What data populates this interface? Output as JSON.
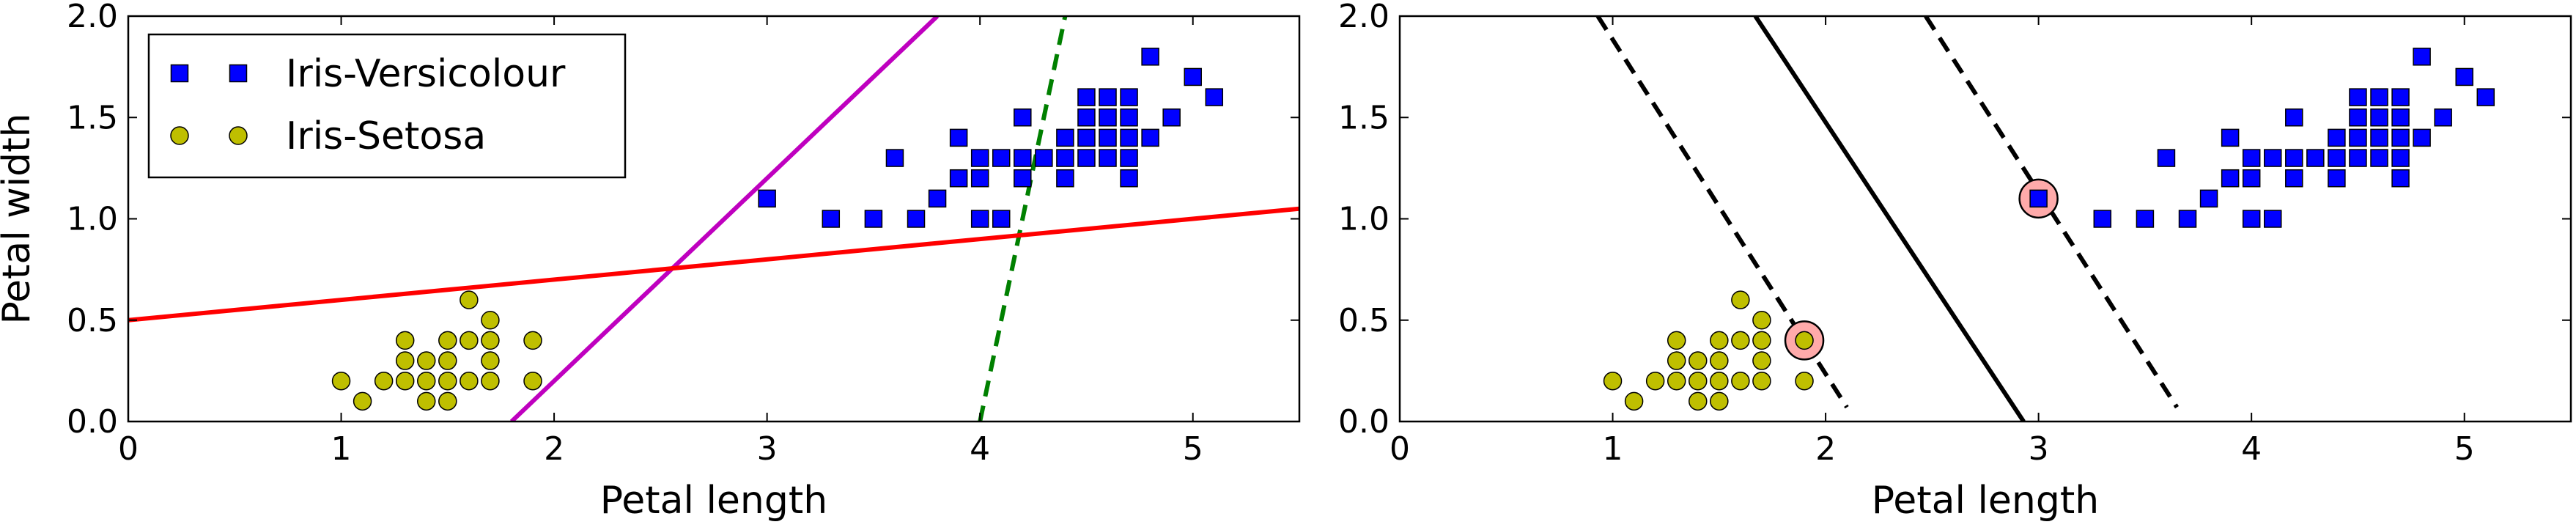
{
  "chart_data": [
    {
      "type": "scatter",
      "title": "",
      "xlabel": "Petal length",
      "ylabel": "Petal width",
      "xlim": [
        0,
        5.5
      ],
      "ylim": [
        0,
        2.0
      ],
      "xticks": [
        0,
        1,
        2,
        3,
        4,
        5
      ],
      "xtick_labels": [
        "0",
        "1",
        "2",
        "3",
        "4",
        "5"
      ],
      "yticks": [
        0.0,
        0.5,
        1.0,
        1.5,
        2.0
      ],
      "ytick_labels": [
        "0.0",
        "0.5",
        "1.0",
        "1.5",
        "2.0"
      ],
      "legend": {
        "position": "top-left",
        "entries": [
          "Iris-Versicolour",
          "Iris-Setosa"
        ]
      },
      "series": [
        {
          "name": "Iris-Versicolour",
          "marker": "square",
          "color": "#0000ff",
          "points": [
            [
              3.0,
              1.1
            ],
            [
              3.3,
              1.0
            ],
            [
              3.5,
              1.0
            ],
            [
              3.6,
              1.3
            ],
            [
              3.7,
              1.0
            ],
            [
              3.8,
              1.1
            ],
            [
              3.9,
              1.2
            ],
            [
              3.9,
              1.4
            ],
            [
              4.0,
              1.0
            ],
            [
              4.0,
              1.2
            ],
            [
              4.0,
              1.3
            ],
            [
              4.1,
              1.0
            ],
            [
              4.1,
              1.3
            ],
            [
              4.2,
              1.2
            ],
            [
              4.2,
              1.3
            ],
            [
              4.2,
              1.5
            ],
            [
              4.3,
              1.3
            ],
            [
              4.4,
              1.2
            ],
            [
              4.4,
              1.3
            ],
            [
              4.4,
              1.4
            ],
            [
              4.5,
              1.3
            ],
            [
              4.5,
              1.5
            ],
            [
              4.6,
              1.3
            ],
            [
              4.6,
              1.4
            ],
            [
              4.6,
              1.5
            ],
            [
              4.7,
              1.2
            ],
            [
              4.7,
              1.4
            ],
            [
              4.7,
              1.5
            ],
            [
              4.7,
              1.6
            ],
            [
              4.8,
              1.8
            ],
            [
              4.9,
              1.5
            ],
            [
              5.0,
              1.7
            ],
            [
              5.1,
              1.6
            ],
            [
              4.5,
              1.6
            ],
            [
              4.6,
              1.6
            ],
            [
              4.5,
              1.4
            ],
            [
              4.7,
              1.3
            ],
            [
              4.8,
              1.4
            ]
          ]
        },
        {
          "name": "Iris-Setosa",
          "marker": "circle",
          "color": "#bfbf00",
          "points": [
            [
              1.0,
              0.2
            ],
            [
              1.1,
              0.1
            ],
            [
              1.2,
              0.2
            ],
            [
              1.3,
              0.2
            ],
            [
              1.3,
              0.3
            ],
            [
              1.3,
              0.4
            ],
            [
              1.4,
              0.1
            ],
            [
              1.4,
              0.2
            ],
            [
              1.4,
              0.3
            ],
            [
              1.5,
              0.1
            ],
            [
              1.5,
              0.2
            ],
            [
              1.5,
              0.3
            ],
            [
              1.5,
              0.4
            ],
            [
              1.6,
              0.2
            ],
            [
              1.6,
              0.4
            ],
            [
              1.6,
              0.6
            ],
            [
              1.7,
              0.2
            ],
            [
              1.7,
              0.3
            ],
            [
              1.7,
              0.4
            ],
            [
              1.7,
              0.5
            ],
            [
              1.9,
              0.2
            ],
            [
              1.9,
              0.4
            ]
          ]
        }
      ],
      "lines": [
        {
          "style": "dashed",
          "color": "#008000",
          "points": [
            [
              4.0,
              0.0
            ],
            [
              4.4,
              2.0
            ]
          ]
        },
        {
          "style": "solid",
          "color": "#bf00bf",
          "points": [
            [
              1.8,
              0.0
            ],
            [
              3.8,
              2.0
            ]
          ]
        },
        {
          "style": "solid",
          "color": "#ff0000",
          "points": [
            [
              0.0,
              0.5
            ],
            [
              5.5,
              1.05
            ]
          ]
        }
      ]
    },
    {
      "type": "scatter",
      "title": "",
      "xlabel": "Petal length",
      "ylabel": "",
      "xlim": [
        0,
        5.5
      ],
      "ylim": [
        0,
        2.0
      ],
      "xticks": [
        0,
        1,
        2,
        3,
        4,
        5
      ],
      "xtick_labels": [
        "0",
        "1",
        "2",
        "3",
        "4",
        "5"
      ],
      "yticks": [
        0.0,
        0.5,
        1.0,
        1.5,
        2.0
      ],
      "ytick_labels": [
        "0.0",
        "0.5",
        "1.0",
        "1.5",
        "2.0"
      ],
      "series": [
        {
          "name": "Iris-Versicolour",
          "marker": "square",
          "color": "#0000ff",
          "points": [
            [
              3.0,
              1.1
            ],
            [
              3.3,
              1.0
            ],
            [
              3.5,
              1.0
            ],
            [
              3.6,
              1.3
            ],
            [
              3.7,
              1.0
            ],
            [
              3.8,
              1.1
            ],
            [
              3.9,
              1.2
            ],
            [
              3.9,
              1.4
            ],
            [
              4.0,
              1.0
            ],
            [
              4.0,
              1.2
            ],
            [
              4.0,
              1.3
            ],
            [
              4.1,
              1.0
            ],
            [
              4.1,
              1.3
            ],
            [
              4.2,
              1.2
            ],
            [
              4.2,
              1.3
            ],
            [
              4.2,
              1.5
            ],
            [
              4.3,
              1.3
            ],
            [
              4.4,
              1.2
            ],
            [
              4.4,
              1.3
            ],
            [
              4.4,
              1.4
            ],
            [
              4.5,
              1.3
            ],
            [
              4.5,
              1.5
            ],
            [
              4.6,
              1.3
            ],
            [
              4.6,
              1.4
            ],
            [
              4.6,
              1.5
            ],
            [
              4.7,
              1.2
            ],
            [
              4.7,
              1.4
            ],
            [
              4.7,
              1.5
            ],
            [
              4.7,
              1.6
            ],
            [
              4.8,
              1.8
            ],
            [
              4.9,
              1.5
            ],
            [
              5.0,
              1.7
            ],
            [
              5.1,
              1.6
            ],
            [
              4.5,
              1.6
            ],
            [
              4.6,
              1.6
            ],
            [
              4.5,
              1.4
            ],
            [
              4.7,
              1.3
            ],
            [
              4.8,
              1.4
            ]
          ]
        },
        {
          "name": "Iris-Setosa",
          "marker": "circle",
          "color": "#bfbf00",
          "points": [
            [
              1.0,
              0.2
            ],
            [
              1.1,
              0.1
            ],
            [
              1.2,
              0.2
            ],
            [
              1.3,
              0.2
            ],
            [
              1.3,
              0.3
            ],
            [
              1.3,
              0.4
            ],
            [
              1.4,
              0.1
            ],
            [
              1.4,
              0.2
            ],
            [
              1.4,
              0.3
            ],
            [
              1.5,
              0.1
            ],
            [
              1.5,
              0.2
            ],
            [
              1.5,
              0.3
            ],
            [
              1.5,
              0.4
            ],
            [
              1.6,
              0.2
            ],
            [
              1.6,
              0.4
            ],
            [
              1.6,
              0.6
            ],
            [
              1.7,
              0.2
            ],
            [
              1.7,
              0.3
            ],
            [
              1.7,
              0.4
            ],
            [
              1.7,
              0.5
            ],
            [
              1.9,
              0.2
            ],
            [
              1.9,
              0.4
            ]
          ]
        }
      ],
      "support_vectors": {
        "color": "#ffaaaa",
        "points": [
          [
            1.9,
            0.4
          ],
          [
            3.0,
            1.1
          ]
        ]
      },
      "lines": [
        {
          "style": "solid",
          "color": "#000000",
          "points": [
            [
              1.67,
              2.0
            ],
            [
              2.93,
              0.0
            ]
          ]
        },
        {
          "style": "dashed",
          "color": "#000000",
          "points": [
            [
              0.93,
              2.0
            ],
            [
              2.1,
              0.07
            ]
          ]
        },
        {
          "style": "dashed",
          "color": "#000000",
          "points": [
            [
              2.47,
              2.0
            ],
            [
              3.65,
              0.07
            ]
          ]
        }
      ]
    }
  ]
}
